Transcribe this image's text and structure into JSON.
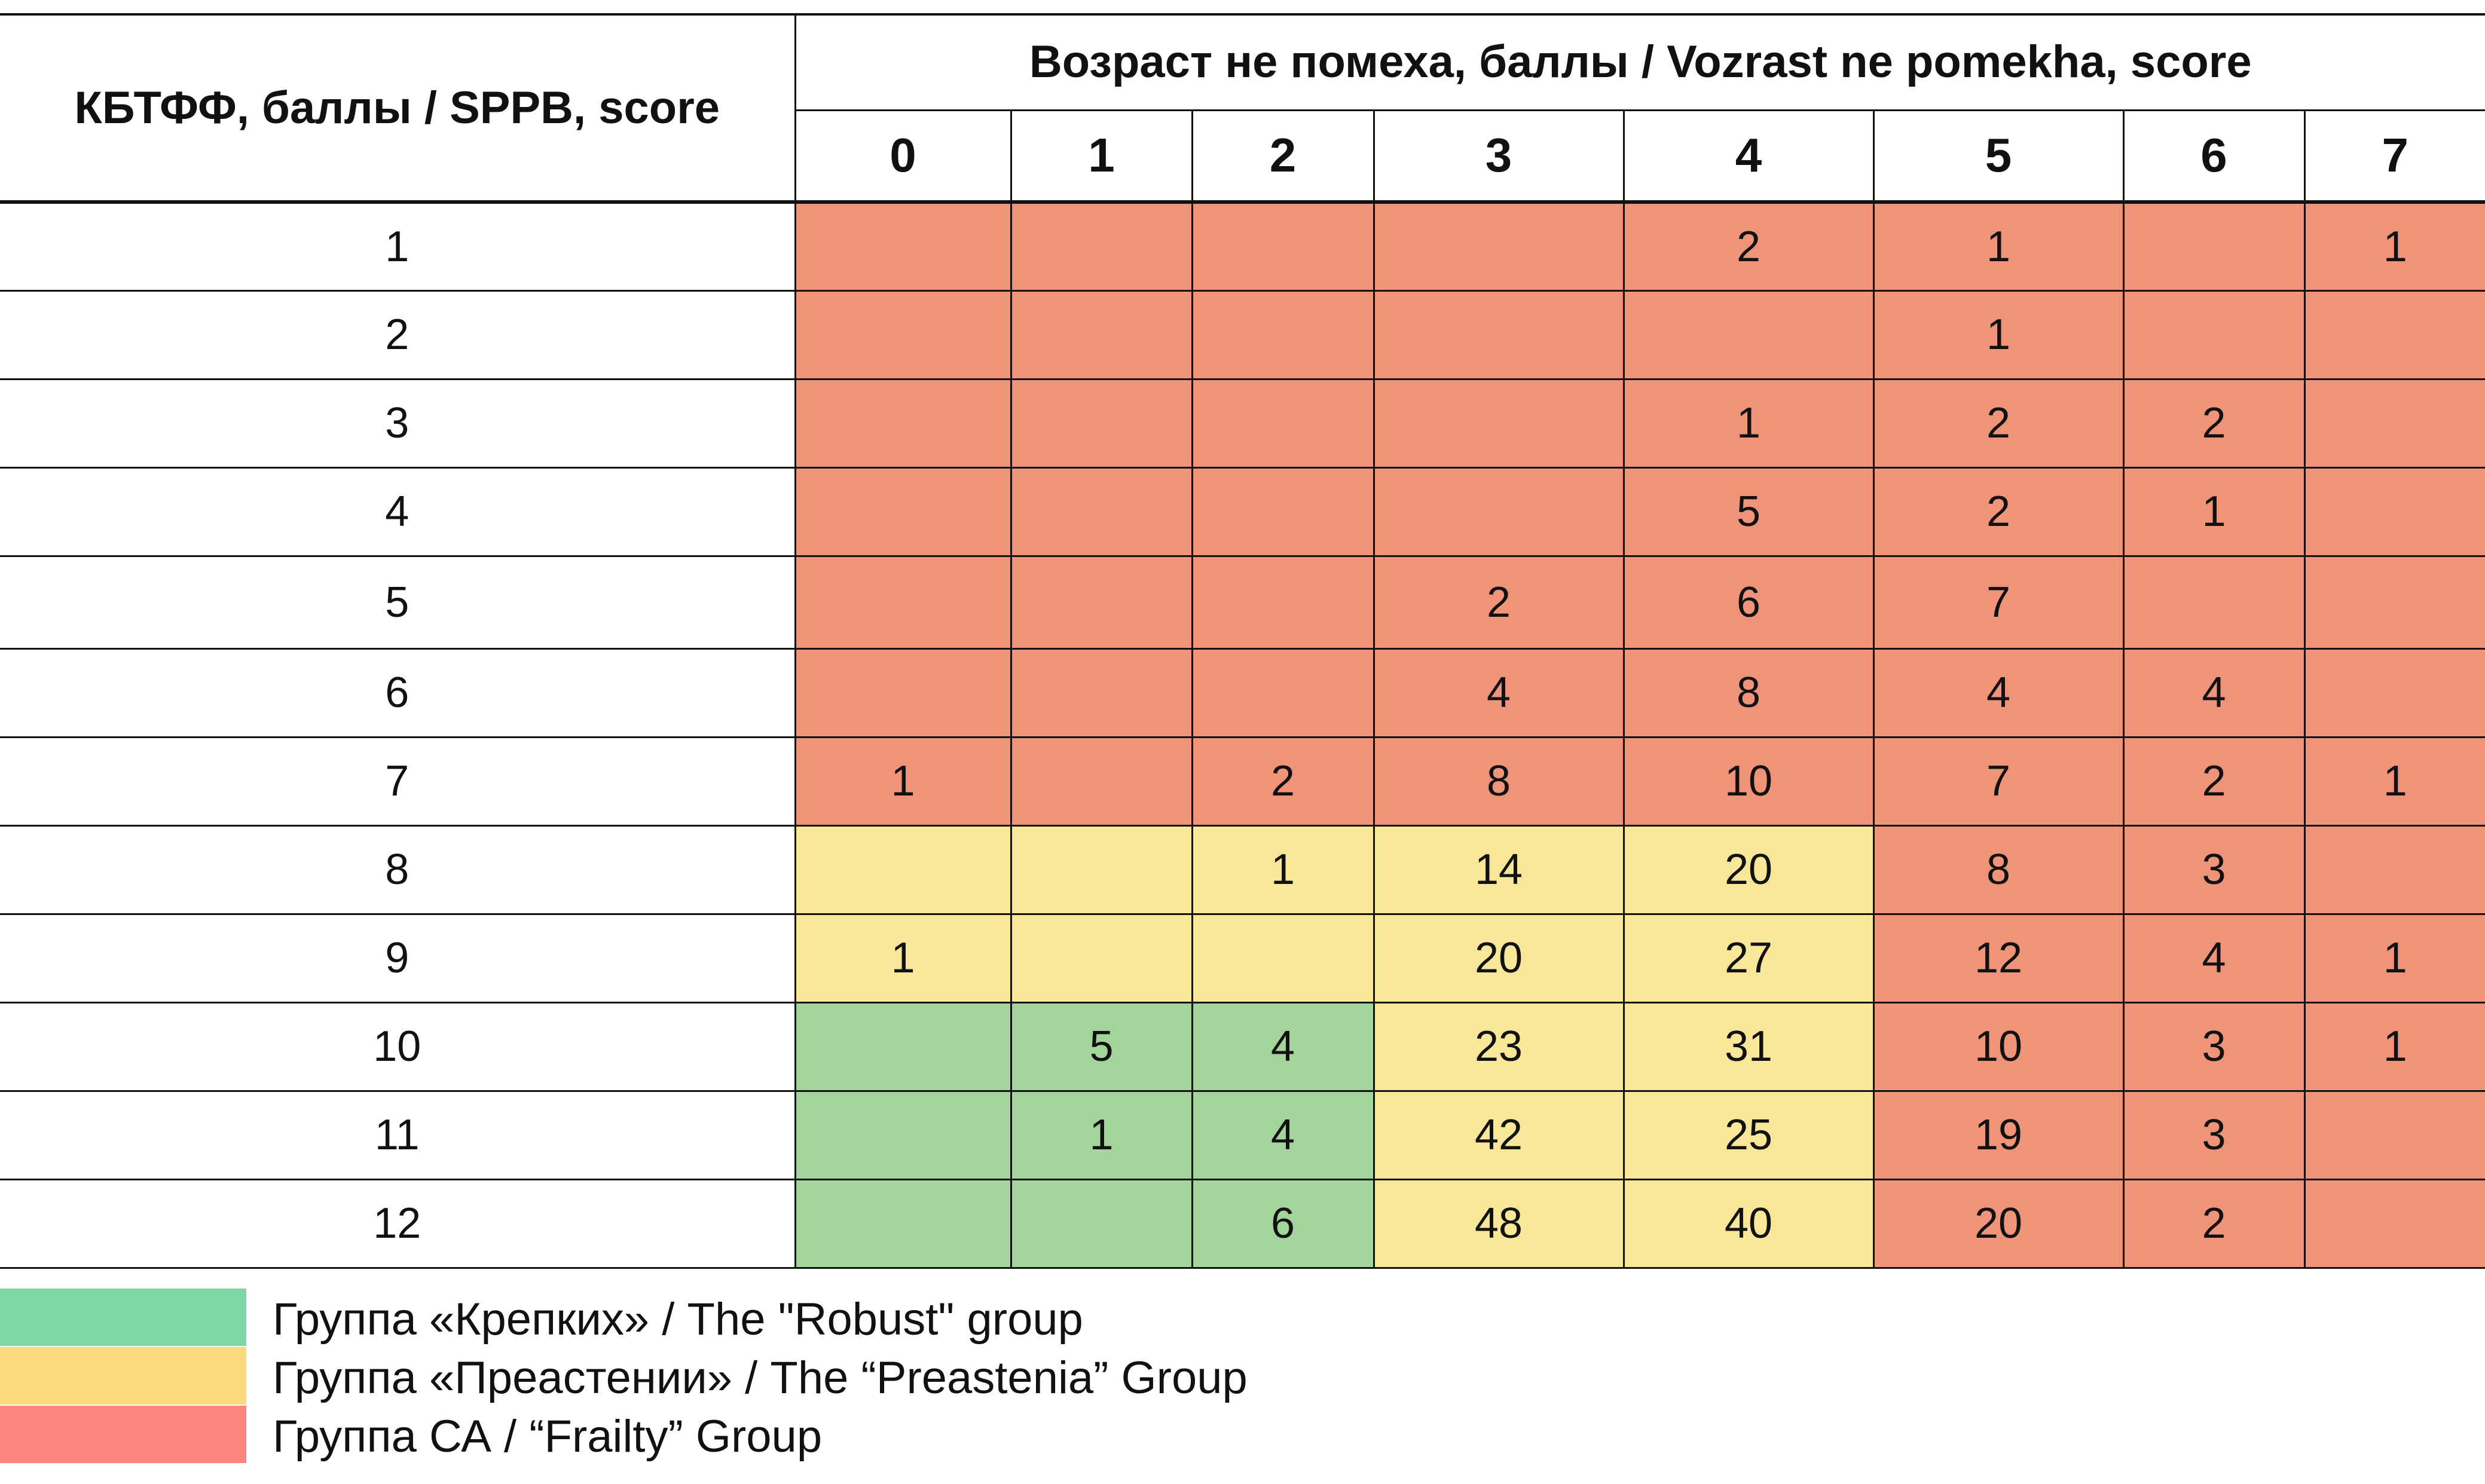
{
  "table": {
    "corner_label": "КБТФФ, баллы / SPPB, score",
    "group_header": "Возраст не помеха, баллы / Vozrast ne pomekha, score",
    "columns": [
      "0",
      "1",
      "2",
      "3",
      "4",
      "5",
      "6",
      "7"
    ],
    "rows": [
      {
        "label": "1",
        "cells": [
          "",
          "",
          "",
          "",
          "2",
          "1",
          "",
          "1"
        ],
        "groups": [
          "frailty",
          "frailty",
          "frailty",
          "frailty",
          "frailty",
          "frailty",
          "frailty",
          "frailty"
        ]
      },
      {
        "label": "2",
        "cells": [
          "",
          "",
          "",
          "",
          "",
          "1",
          "",
          ""
        ],
        "groups": [
          "frailty",
          "frailty",
          "frailty",
          "frailty",
          "frailty",
          "frailty",
          "frailty",
          "frailty"
        ]
      },
      {
        "label": "3",
        "cells": [
          "",
          "",
          "",
          "",
          "1",
          "2",
          "2",
          ""
        ],
        "groups": [
          "frailty",
          "frailty",
          "frailty",
          "frailty",
          "frailty",
          "frailty",
          "frailty",
          "frailty"
        ]
      },
      {
        "label": "4",
        "cells": [
          "",
          "",
          "",
          "",
          "5",
          "2",
          "1",
          ""
        ],
        "groups": [
          "frailty",
          "frailty",
          "frailty",
          "frailty",
          "frailty",
          "frailty",
          "frailty",
          "frailty"
        ]
      },
      {
        "label": "5",
        "cells": [
          "",
          "",
          "",
          "2",
          "6",
          "7",
          "",
          ""
        ],
        "groups": [
          "frailty",
          "frailty",
          "frailty",
          "frailty",
          "frailty",
          "frailty",
          "frailty",
          "frailty"
        ]
      },
      {
        "label": "6",
        "cells": [
          "",
          "",
          "",
          "4",
          "8",
          "4",
          "4",
          ""
        ],
        "groups": [
          "frailty",
          "frailty",
          "frailty",
          "frailty",
          "frailty",
          "frailty",
          "frailty",
          "frailty"
        ]
      },
      {
        "label": "7",
        "cells": [
          "1",
          "",
          "2",
          "8",
          "10",
          "7",
          "2",
          "1"
        ],
        "groups": [
          "frailty",
          "frailty",
          "frailty",
          "frailty",
          "frailty",
          "frailty",
          "frailty",
          "frailty"
        ]
      },
      {
        "label": "8",
        "cells": [
          "",
          "",
          "1",
          "14",
          "20",
          "8",
          "3",
          ""
        ],
        "groups": [
          "preastenia",
          "preastenia",
          "preastenia",
          "preastenia",
          "preastenia",
          "frailty",
          "frailty",
          "frailty"
        ]
      },
      {
        "label": "9",
        "cells": [
          "1",
          "",
          "",
          "20",
          "27",
          "12",
          "4",
          "1"
        ],
        "groups": [
          "preastenia",
          "preastenia",
          "preastenia",
          "preastenia",
          "preastenia",
          "frailty",
          "frailty",
          "frailty"
        ]
      },
      {
        "label": "10",
        "cells": [
          "",
          "5",
          "4",
          "23",
          "31",
          "10",
          "3",
          "1"
        ],
        "groups": [
          "robust",
          "robust",
          "robust",
          "preastenia",
          "preastenia",
          "frailty",
          "frailty",
          "frailty"
        ]
      },
      {
        "label": "11",
        "cells": [
          "",
          "1",
          "4",
          "42",
          "25",
          "19",
          "3",
          ""
        ],
        "groups": [
          "robust",
          "robust",
          "robust",
          "preastenia",
          "preastenia",
          "frailty",
          "frailty",
          "frailty"
        ]
      },
      {
        "label": "12",
        "cells": [
          "",
          "",
          "6",
          "48",
          "40",
          "20",
          "2",
          ""
        ],
        "groups": [
          "robust",
          "robust",
          "robust",
          "preastenia",
          "preastenia",
          "frailty",
          "frailty",
          "frailty"
        ]
      }
    ]
  },
  "cell_colors": {
    "robust": "#a3d49a",
    "preastenia": "#f8e799",
    "frailty": "#f09479"
  },
  "legend": [
    {
      "group": "robust",
      "label": "Группа «Крепких» / The \"Robust\" group",
      "color": "#7fd6a3"
    },
    {
      "group": "preastenia",
      "label": "Группа «Преастении» / The “Preastenia” Group",
      "color": "#fdd97d"
    },
    {
      "group": "frailty",
      "label": "Группа СА / “Frailty” Group",
      "color": "#fe8682"
    }
  ]
}
